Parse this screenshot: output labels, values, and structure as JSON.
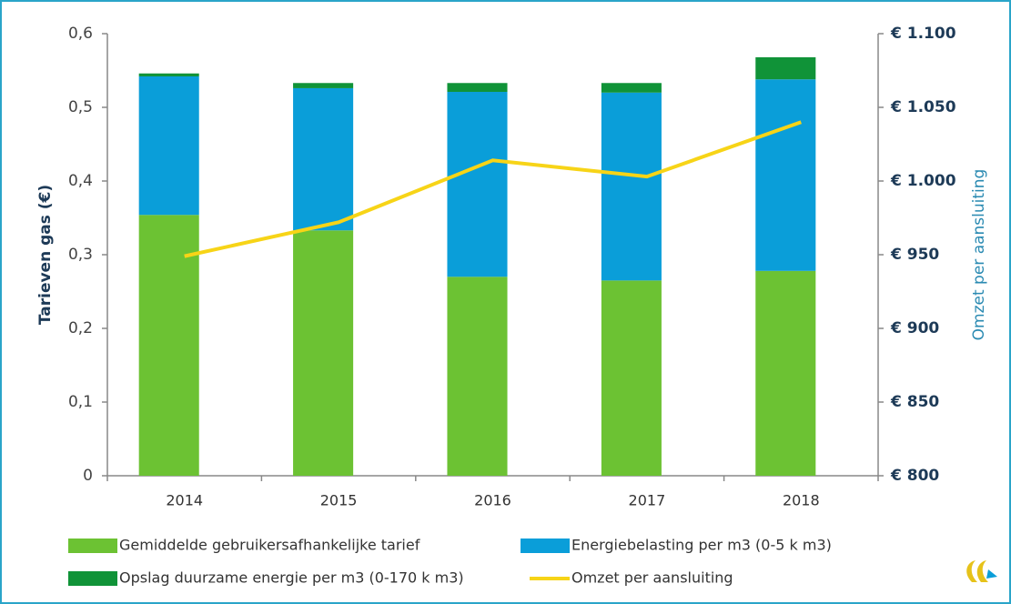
{
  "chart_data": {
    "type": "bar",
    "categories": [
      "2014",
      "2015",
      "2016",
      "2017",
      "2018"
    ],
    "y_label": "Tarieven gas (€)",
    "y2_label": "Omzet per aansluiting",
    "ylim": [
      0,
      0.6
    ],
    "yticks": [
      0,
      {
        "value": 0.1,
        "label": "0,1"
      },
      {
        "value": 0.2,
        "label": "0,2"
      },
      {
        "value": 0.3,
        "label": "0,3"
      },
      {
        "value": 0.4,
        "label": "0,4"
      },
      {
        "value": 0.5,
        "label": "0,5"
      },
      {
        "value": 0.6,
        "label": "0,6"
      }
    ],
    "y2lim": [
      800,
      1100
    ],
    "y2ticks": [
      {
        "value": 800,
        "label": "€ 800"
      },
      {
        "value": 850,
        "label": "€ 850"
      },
      {
        "value": 900,
        "label": "€ 900"
      },
      {
        "value": 950,
        "label": "€ 950"
      },
      {
        "value": 1000,
        "label": "€ 1.000"
      },
      {
        "value": 1050,
        "label": "€ 1.050"
      },
      {
        "value": 1100,
        "label": "€ 1.100"
      }
    ],
    "stacked": true,
    "series": [
      {
        "name": "Gemiddelde gebruikersafhankelijke tarief",
        "color": "#6cc233",
        "values": [
          0.354,
          0.333,
          0.27,
          0.265,
          0.278
        ]
      },
      {
        "name": "Energiebelasting per m3 (0-5 k m3)",
        "color": "#0a9ed9",
        "values": [
          0.188,
          0.193,
          0.251,
          0.255,
          0.26
        ]
      },
      {
        "name": "Opslag duurzame energie per m3 (0-170 k m3)",
        "color": "#109338",
        "values": [
          0.004,
          0.007,
          0.012,
          0.013,
          0.03
        ]
      },
      {
        "name": "Omzet per aansluiting",
        "color": "#f7d417",
        "type": "line",
        "axis": "y2",
        "values": [
          949,
          972,
          1014,
          1003,
          1040
        ]
      }
    ]
  }
}
